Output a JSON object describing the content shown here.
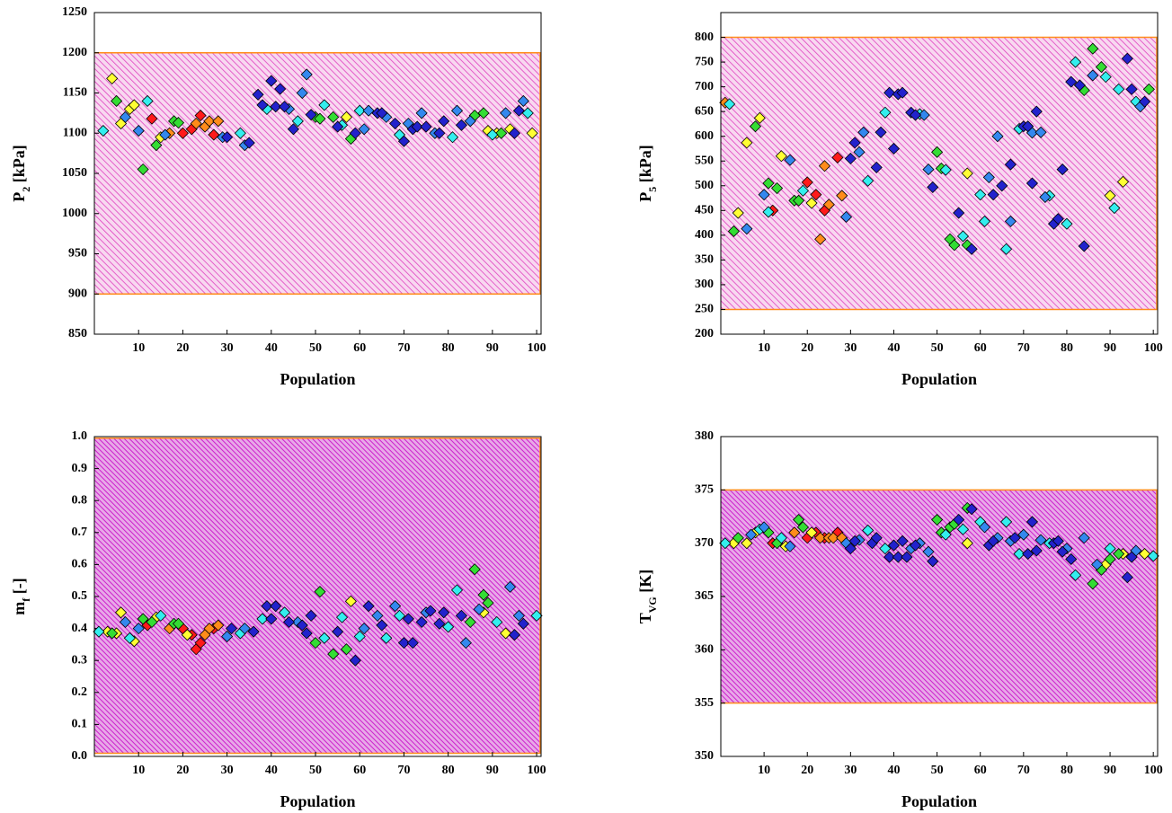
{
  "chart_data": [
    {
      "type": "scatter",
      "ylabel": [
        "P",
        "2",
        " [kPa]"
      ],
      "xlabel": "Population",
      "xlim": [
        0,
        101
      ],
      "xticks": [
        10,
        20,
        30,
        40,
        50,
        60,
        70,
        80,
        90,
        100
      ],
      "ylim": [
        850,
        1250
      ],
      "yticks": [
        850,
        900,
        950,
        1000,
        1050,
        1100,
        1150,
        1200,
        1250
      ],
      "band": [
        900,
        1200
      ],
      "band_color": "#e040c0",
      "band_edge_color": "#ff8c1a",
      "series": [
        {
          "color": "#ff1a1a",
          "x": [
            13,
            20,
            22,
            24,
            27
          ],
          "values": [
            1118,
            1100,
            1105,
            1122,
            1098
          ]
        },
        {
          "color": "#ff8c1a",
          "x": [
            17,
            23,
            25,
            26,
            28
          ],
          "values": [
            1100,
            1112,
            1108,
            1115,
            1115
          ]
        },
        {
          "color": "#ffff33",
          "x": [
            4,
            6,
            8,
            9,
            15,
            57,
            89,
            91,
            94,
            99
          ],
          "values": [
            1168,
            1112,
            1130,
            1135,
            1095,
            1120,
            1103,
            1100,
            1105,
            1100
          ]
        },
        {
          "color": "#33dd33",
          "x": [
            5,
            11,
            14,
            18,
            19,
            50,
            51,
            54,
            58,
            86,
            88,
            92
          ],
          "values": [
            1140,
            1055,
            1085,
            1115,
            1113,
            1120,
            1118,
            1120,
            1093,
            1122,
            1125,
            1100
          ]
        },
        {
          "color": "#33eeee",
          "x": [
            2,
            12,
            33,
            39,
            46,
            52,
            56,
            60,
            69,
            81,
            90,
            98
          ],
          "values": [
            1103,
            1140,
            1100,
            1130,
            1115,
            1135,
            1110,
            1128,
            1098,
            1095,
            1098,
            1125
          ]
        },
        {
          "color": "#3388ee",
          "x": [
            7,
            10,
            16,
            29,
            34,
            44,
            47,
            48,
            61,
            62,
            66,
            71,
            74,
            77,
            82,
            85,
            93,
            97
          ],
          "values": [
            1120,
            1103,
            1098,
            1095,
            1085,
            1130,
            1150,
            1173,
            1105,
            1128,
            1120,
            1112,
            1125,
            1100,
            1128,
            1115,
            1125,
            1140
          ]
        },
        {
          "color": "#2222cc",
          "x": [
            30,
            35,
            37,
            38,
            40,
            41,
            42,
            43,
            45,
            49,
            55,
            59,
            64,
            65,
            68,
            70,
            72,
            73,
            75,
            78,
            79,
            83,
            95,
            96
          ],
          "values": [
            1095,
            1088,
            1148,
            1135,
            1165,
            1133,
            1155,
            1133,
            1105,
            1123,
            1108,
            1100,
            1125,
            1125,
            1112,
            1090,
            1105,
            1108,
            1108,
            1100,
            1115,
            1110,
            1100,
            1128
          ]
        }
      ]
    },
    {
      "type": "scatter",
      "ylabel": [
        "P",
        "5",
        " [kPa]"
      ],
      "xlabel": "Population",
      "xlim": [
        0,
        101
      ],
      "xticks": [
        10,
        20,
        30,
        40,
        50,
        60,
        70,
        80,
        90,
        100
      ],
      "ylim": [
        200,
        850
      ],
      "yticks": [
        200,
        250,
        300,
        350,
        400,
        450,
        500,
        550,
        600,
        650,
        700,
        750,
        800
      ],
      "band": [
        250,
        800
      ],
      "band_color": "#e040c0",
      "band_edge_color": "#ff8c1a",
      "series": [
        {
          "color": "#ff1a1a",
          "x": [
            12,
            20,
            22,
            24,
            27
          ],
          "values": [
            450,
            507,
            482,
            450,
            557
          ]
        },
        {
          "color": "#ff8c1a",
          "x": [
            1,
            23,
            24,
            25,
            28
          ],
          "values": [
            668,
            392,
            540,
            462,
            480
          ]
        },
        {
          "color": "#ffff33",
          "x": [
            4,
            6,
            9,
            14,
            21,
            57,
            90,
            93
          ],
          "values": [
            445,
            587,
            637,
            560,
            465,
            525,
            480,
            508
          ]
        },
        {
          "color": "#33dd33",
          "x": [
            3,
            8,
            11,
            13,
            17,
            18,
            50,
            51,
            53,
            54,
            57,
            84,
            86,
            88,
            99
          ],
          "values": [
            408,
            620,
            505,
            495,
            470,
            470,
            568,
            535,
            392,
            380,
            380,
            693,
            777,
            740,
            695
          ]
        },
        {
          "color": "#33eeee",
          "x": [
            2,
            11,
            19,
            34,
            38,
            46,
            52,
            56,
            60,
            61,
            66,
            69,
            76,
            80,
            82,
            89,
            91,
            92,
            96
          ],
          "values": [
            665,
            447,
            490,
            510,
            648,
            645,
            532,
            398,
            482,
            428,
            372,
            615,
            480,
            423,
            750,
            720,
            455,
            695,
            670
          ]
        },
        {
          "color": "#3388ee",
          "x": [
            6,
            10,
            16,
            29,
            32,
            33,
            47,
            48,
            62,
            64,
            67,
            72,
            74,
            75,
            86,
            97
          ],
          "values": [
            413,
            482,
            552,
            437,
            568,
            608,
            643,
            533,
            517,
            600,
            428,
            607,
            608,
            477,
            723,
            660
          ]
        },
        {
          "color": "#2222cc",
          "x": [
            30,
            31,
            36,
            37,
            39,
            40,
            41,
            42,
            44,
            45,
            49,
            55,
            58,
            63,
            65,
            67,
            70,
            71,
            72,
            73,
            77,
            78,
            79,
            81,
            83,
            84,
            94,
            95,
            98
          ],
          "values": [
            555,
            587,
            537,
            608,
            688,
            575,
            685,
            688,
            648,
            643,
            497,
            445,
            372,
            482,
            500,
            543,
            620,
            620,
            505,
            650,
            423,
            433,
            533,
            710,
            703,
            378,
            757,
            695,
            670
          ]
        }
      ]
    },
    {
      "type": "scatter",
      "ylabel": [
        "m",
        "f",
        " [-]"
      ],
      "xlabel": "Population",
      "xlim": [
        0,
        101
      ],
      "xticks": [
        10,
        20,
        30,
        40,
        50,
        60,
        70,
        80,
        90,
        100
      ],
      "ylim": [
        0,
        1
      ],
      "yticks": [
        {
          "value": 0,
          "label": "0.0"
        },
        0.1,
        0.2,
        0.3,
        0.4,
        0.5,
        0.6,
        0.7,
        0.8,
        0.9,
        {
          "value": 1,
          "label": "1.0"
        }
      ],
      "band": [
        0.01,
        0.995
      ],
      "band_color": "#cc20cc",
      "band_edge_color": "#ff8c1a",
      "series": [
        {
          "color": "#ff1a1a",
          "x": [
            12,
            20,
            22,
            23,
            24,
            27
          ],
          "values": [
            0.41,
            0.4,
            0.38,
            0.335,
            0.355,
            0.4
          ]
        },
        {
          "color": "#ff8c1a",
          "x": [
            17,
            25,
            26,
            28
          ],
          "values": [
            0.4,
            0.38,
            0.4,
            0.41
          ]
        },
        {
          "color": "#ffff33",
          "x": [
            3,
            5,
            6,
            9,
            14,
            21,
            58,
            88,
            93
          ],
          "values": [
            0.39,
            0.385,
            0.45,
            0.36,
            0.435,
            0.38,
            0.485,
            0.45,
            0.385
          ]
        },
        {
          "color": "#33dd33",
          "x": [
            4,
            11,
            13,
            18,
            19,
            50,
            51,
            54,
            57,
            85,
            86,
            88,
            89
          ],
          "values": [
            0.385,
            0.43,
            0.42,
            0.415,
            0.415,
            0.355,
            0.515,
            0.32,
            0.335,
            0.42,
            0.585,
            0.505,
            0.48
          ]
        },
        {
          "color": "#33eeee",
          "x": [
            1,
            8,
            15,
            33,
            38,
            43,
            52,
            56,
            60,
            66,
            69,
            80,
            82,
            91,
            100
          ],
          "values": [
            0.39,
            0.37,
            0.44,
            0.385,
            0.43,
            0.45,
            0.37,
            0.435,
            0.375,
            0.37,
            0.44,
            0.405,
            0.52,
            0.42,
            0.44
          ]
        },
        {
          "color": "#3388ee",
          "x": [
            7,
            10,
            30,
            34,
            46,
            61,
            64,
            68,
            75,
            84,
            87,
            94,
            96
          ],
          "values": [
            0.42,
            0.4,
            0.375,
            0.4,
            0.42,
            0.4,
            0.44,
            0.47,
            0.45,
            0.355,
            0.46,
            0.53,
            0.44
          ]
        },
        {
          "color": "#2222cc",
          "x": [
            31,
            36,
            39,
            40,
            41,
            44,
            47,
            48,
            49,
            55,
            59,
            62,
            65,
            70,
            71,
            72,
            74,
            76,
            78,
            79,
            83,
            95,
            97
          ],
          "values": [
            0.4,
            0.39,
            0.47,
            0.43,
            0.47,
            0.42,
            0.41,
            0.385,
            0.44,
            0.39,
            0.3,
            0.47,
            0.41,
            0.355,
            0.43,
            0.355,
            0.42,
            0.455,
            0.415,
            0.45,
            0.44,
            0.38,
            0.415
          ]
        }
      ]
    },
    {
      "type": "scatter",
      "ylabel": [
        "T",
        "VG",
        " [K]"
      ],
      "xlabel": "Population",
      "xlim": [
        0,
        101
      ],
      "xticks": [
        10,
        20,
        30,
        40,
        50,
        60,
        70,
        80,
        90,
        100
      ],
      "ylim": [
        350,
        380
      ],
      "yticks": [
        350,
        355,
        360,
        365,
        370,
        375,
        380
      ],
      "band": [
        355,
        375
      ],
      "band_color": "#cc20cc",
      "band_edge_color": "#ff8c1a",
      "series": [
        {
          "color": "#ff1a1a",
          "x": [
            12,
            20,
            22,
            24,
            27
          ],
          "values": [
            370,
            370.5,
            371,
            370.5,
            371
          ]
        },
        {
          "color": "#ff8c1a",
          "x": [
            17,
            23,
            25,
            26,
            28
          ],
          "values": [
            371,
            370.5,
            370.5,
            370.5,
            370.5
          ]
        },
        {
          "color": "#ffff33",
          "x": [
            3,
            6,
            8,
            15,
            21,
            57,
            89,
            93,
            98
          ],
          "values": [
            370,
            370,
            371,
            369.7,
            371,
            370,
            368,
            369,
            369
          ]
        },
        {
          "color": "#33dd33",
          "x": [
            4,
            11,
            13,
            18,
            19,
            50,
            51,
            53,
            54,
            57,
            86,
            88,
            90,
            92
          ],
          "values": [
            370.5,
            371,
            370,
            372.2,
            371.5,
            372.2,
            371,
            371.5,
            371.8,
            373.3,
            366.2,
            367.5,
            368.5,
            369
          ]
        },
        {
          "color": "#33eeee",
          "x": [
            1,
            9,
            14,
            34,
            38,
            52,
            56,
            60,
            66,
            69,
            76,
            82,
            90,
            100
          ],
          "values": [
            370,
            371.3,
            370.5,
            371.2,
            369.5,
            370.8,
            371.3,
            372,
            372,
            369,
            370,
            367,
            369.5,
            368.8
          ]
        },
        {
          "color": "#3388ee",
          "x": [
            7,
            10,
            16,
            29,
            32,
            44,
            46,
            48,
            61,
            64,
            67,
            70,
            74,
            80,
            84,
            87,
            96
          ],
          "values": [
            370.8,
            371.5,
            369.7,
            370,
            370.3,
            369.5,
            370,
            369.2,
            371.5,
            370.5,
            370.2,
            370.8,
            370.3,
            369.5,
            370.5,
            368,
            369.3
          ]
        },
        {
          "color": "#2222cc",
          "x": [
            30,
            31,
            35,
            36,
            39,
            40,
            41,
            42,
            43,
            45,
            49,
            55,
            58,
            62,
            63,
            68,
            71,
            72,
            73,
            77,
            78,
            79,
            81,
            94,
            95
          ],
          "values": [
            369.5,
            370.2,
            370,
            370.5,
            368.7,
            369.8,
            368.7,
            370.2,
            368.7,
            369.8,
            368.3,
            372.2,
            373.2,
            369.8,
            370.2,
            370.5,
            369,
            372,
            369.3,
            370,
            370.2,
            369.2,
            368.5,
            366.8,
            368.7
          ]
        }
      ]
    }
  ]
}
